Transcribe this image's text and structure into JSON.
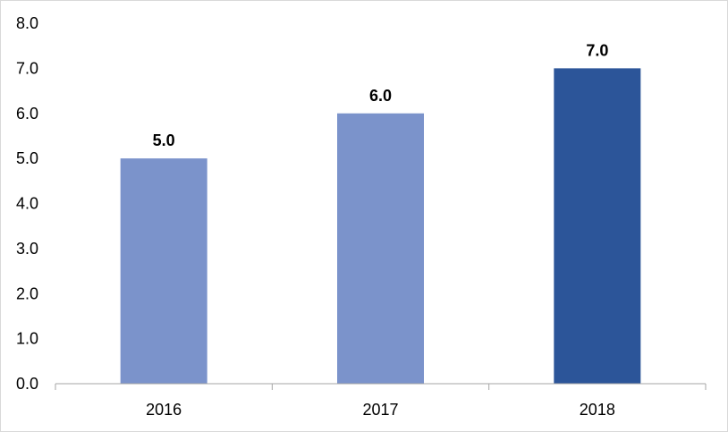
{
  "chart_data": {
    "type": "bar",
    "categories": [
      "2016",
      "2017",
      "2018"
    ],
    "values": [
      5.0,
      6.0,
      7.0
    ],
    "data_labels": [
      "5.0",
      "6.0",
      "7.0"
    ],
    "y_tick_labels": [
      "0.0",
      "1.0",
      "2.0",
      "3.0",
      "4.0",
      "5.0",
      "6.0",
      "7.0",
      "8.0"
    ],
    "ylim": [
      0,
      8
    ],
    "grid": false,
    "legend": "none",
    "bar_colors": [
      "#7b93cb",
      "#7b93cb",
      "#2c5599"
    ]
  }
}
